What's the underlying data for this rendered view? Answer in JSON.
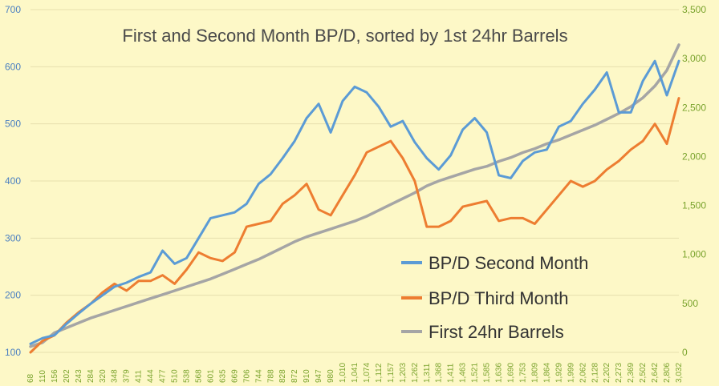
{
  "chart_data": {
    "type": "line",
    "title": "First and Second Month BP/D, sorted by 1st 24hr Barrels",
    "xlabel": "",
    "ylabel": "",
    "y_left": {
      "min": 100,
      "max": 700,
      "ticks": [
        "100",
        "200",
        "300",
        "400",
        "500",
        "600",
        "700"
      ]
    },
    "y_right": {
      "min": 0,
      "max": 3500,
      "ticks": [
        "0",
        "500",
        "1,000",
        "1,500",
        "2,000",
        "2,500",
        "3,000",
        "3,500"
      ]
    },
    "x_tick_labels": [
      "68",
      "110",
      "156",
      "202",
      "243",
      "284",
      "320",
      "348",
      "379",
      "411",
      "444",
      "477",
      "510",
      "538",
      "568",
      "601",
      "635",
      "669",
      "706",
      "744",
      "788",
      "828",
      "872",
      "910",
      "947",
      "980",
      "1,010",
      "1,041",
      "1,074",
      "1,112",
      "1,157",
      "1,203",
      "1,262",
      "1,311",
      "1,368",
      "1,411",
      "1,463",
      "1,521",
      "1,585",
      "1,636",
      "1,690",
      "1,753",
      "1,809",
      "1,864",
      "1,929",
      "1,999",
      "2,062",
      "2,128",
      "2,202",
      "2,273",
      "2,369",
      "2,502",
      "2,642",
      "2,806",
      "3,032"
    ],
    "grid": true,
    "legend": "bottom-right",
    "series": [
      {
        "name": "BP/D Second Month",
        "axis": "left",
        "color": "#5B9BD5",
        "values": [
          [
            0,
            115
          ],
          [
            1,
            125
          ],
          [
            2,
            130
          ],
          [
            3,
            150
          ],
          [
            4,
            168
          ],
          [
            5,
            185
          ],
          [
            6,
            200
          ],
          [
            7,
            215
          ],
          [
            8,
            222
          ],
          [
            9,
            232
          ],
          [
            10,
            240
          ],
          [
            11,
            278
          ],
          [
            12,
            255
          ],
          [
            13,
            265
          ],
          [
            14,
            300
          ],
          [
            15,
            335
          ],
          [
            16,
            340
          ],
          [
            17,
            345
          ],
          [
            18,
            360
          ],
          [
            19,
            395
          ],
          [
            20,
            412
          ],
          [
            21,
            440
          ],
          [
            22,
            470
          ],
          [
            23,
            510
          ],
          [
            24,
            535
          ],
          [
            25,
            485
          ],
          [
            26,
            540
          ],
          [
            27,
            565
          ],
          [
            28,
            555
          ],
          [
            29,
            530
          ],
          [
            30,
            495
          ],
          [
            31,
            505
          ],
          [
            32,
            468
          ],
          [
            33,
            440
          ],
          [
            34,
            420
          ],
          [
            35,
            445
          ],
          [
            36,
            490
          ],
          [
            37,
            510
          ],
          [
            38,
            485
          ],
          [
            39,
            410
          ],
          [
            40,
            405
          ],
          [
            41,
            435
          ],
          [
            42,
            450
          ],
          [
            43,
            455
          ],
          [
            44,
            495
          ],
          [
            45,
            505
          ],
          [
            46,
            535
          ],
          [
            47,
            560
          ],
          [
            48,
            590
          ],
          [
            49,
            520
          ],
          [
            50,
            520
          ],
          [
            51,
            575
          ],
          [
            52,
            610
          ],
          [
            53,
            550
          ],
          [
            54,
            610
          ]
        ]
      },
      {
        "name": "BP/D Third Month",
        "axis": "left",
        "color": "#ED7D31",
        "values": [
          [
            0,
            100
          ],
          [
            1,
            120
          ],
          [
            2,
            130
          ],
          [
            3,
            152
          ],
          [
            4,
            170
          ],
          [
            5,
            185
          ],
          [
            6,
            205
          ],
          [
            7,
            220
          ],
          [
            8,
            208
          ],
          [
            9,
            225
          ],
          [
            10,
            225
          ],
          [
            11,
            235
          ],
          [
            12,
            220
          ],
          [
            13,
            245
          ],
          [
            14,
            275
          ],
          [
            15,
            265
          ],
          [
            16,
            260
          ],
          [
            17,
            275
          ],
          [
            18,
            320
          ],
          [
            19,
            325
          ],
          [
            20,
            330
          ],
          [
            21,
            360
          ],
          [
            22,
            375
          ],
          [
            23,
            395
          ],
          [
            24,
            350
          ],
          [
            25,
            340
          ],
          [
            26,
            375
          ],
          [
            27,
            410
          ],
          [
            28,
            450
          ],
          [
            29,
            460
          ],
          [
            30,
            470
          ],
          [
            31,
            440
          ],
          [
            32,
            400
          ],
          [
            33,
            320
          ],
          [
            34,
            320
          ],
          [
            35,
            330
          ],
          [
            36,
            355
          ],
          [
            37,
            360
          ],
          [
            38,
            365
          ],
          [
            39,
            330
          ],
          [
            40,
            335
          ],
          [
            41,
            335
          ],
          [
            42,
            325
          ],
          [
            43,
            350
          ],
          [
            44,
            375
          ],
          [
            45,
            400
          ],
          [
            46,
            390
          ],
          [
            47,
            400
          ],
          [
            48,
            420
          ],
          [
            49,
            435
          ],
          [
            50,
            455
          ],
          [
            51,
            470
          ],
          [
            52,
            500
          ],
          [
            53,
            465
          ],
          [
            54,
            545
          ]
        ]
      },
      {
        "name": "First 24hr Barrels",
        "axis": "right",
        "color": "#A5A5A5",
        "values": [
          [
            0,
            60
          ],
          [
            1,
            100
          ],
          [
            2,
            200
          ],
          [
            3,
            250
          ],
          [
            4,
            300
          ],
          [
            5,
            350
          ],
          [
            6,
            390
          ],
          [
            7,
            430
          ],
          [
            8,
            470
          ],
          [
            9,
            510
          ],
          [
            10,
            550
          ],
          [
            11,
            590
          ],
          [
            12,
            630
          ],
          [
            13,
            670
          ],
          [
            14,
            710
          ],
          [
            15,
            750
          ],
          [
            16,
            800
          ],
          [
            17,
            850
          ],
          [
            18,
            900
          ],
          [
            19,
            950
          ],
          [
            20,
            1010
          ],
          [
            21,
            1070
          ],
          [
            22,
            1130
          ],
          [
            23,
            1180
          ],
          [
            24,
            1220
          ],
          [
            25,
            1260
          ],
          [
            26,
            1300
          ],
          [
            27,
            1340
          ],
          [
            28,
            1390
          ],
          [
            29,
            1450
          ],
          [
            30,
            1510
          ],
          [
            31,
            1570
          ],
          [
            32,
            1630
          ],
          [
            33,
            1700
          ],
          [
            34,
            1750
          ],
          [
            35,
            1790
          ],
          [
            36,
            1830
          ],
          [
            37,
            1870
          ],
          [
            38,
            1900
          ],
          [
            39,
            1950
          ],
          [
            40,
            1990
          ],
          [
            41,
            2040
          ],
          [
            42,
            2080
          ],
          [
            43,
            2130
          ],
          [
            44,
            2170
          ],
          [
            45,
            2220
          ],
          [
            46,
            2270
          ],
          [
            47,
            2320
          ],
          [
            48,
            2380
          ],
          [
            49,
            2440
          ],
          [
            50,
            2510
          ],
          [
            51,
            2600
          ],
          [
            52,
            2720
          ],
          [
            53,
            2880
          ],
          [
            54,
            3140
          ]
        ]
      }
    ]
  }
}
